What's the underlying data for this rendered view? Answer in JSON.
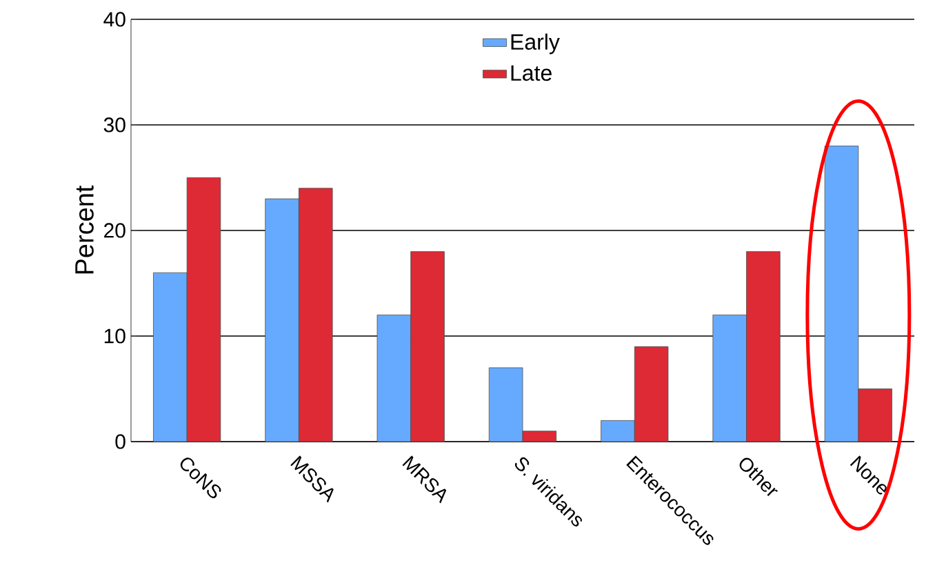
{
  "chart_data": {
    "type": "bar",
    "ylabel": "Percent",
    "categories": [
      "CoNS",
      "MSSA",
      "MRSA",
      "S. viridans",
      "Enterococcus",
      "Other",
      "None"
    ],
    "series": [
      {
        "name": "Early",
        "color": "#66aaff",
        "values": [
          16,
          23,
          12,
          7,
          2,
          12,
          28
        ]
      },
      {
        "name": "Late",
        "color": "#dd2a35",
        "values": [
          25,
          24,
          18,
          1,
          9,
          18,
          5
        ]
      }
    ],
    "ylim": [
      0,
      40
    ],
    "yticks": [
      0,
      10,
      20,
      30,
      40
    ],
    "grid": "y",
    "legend": "top"
  }
}
